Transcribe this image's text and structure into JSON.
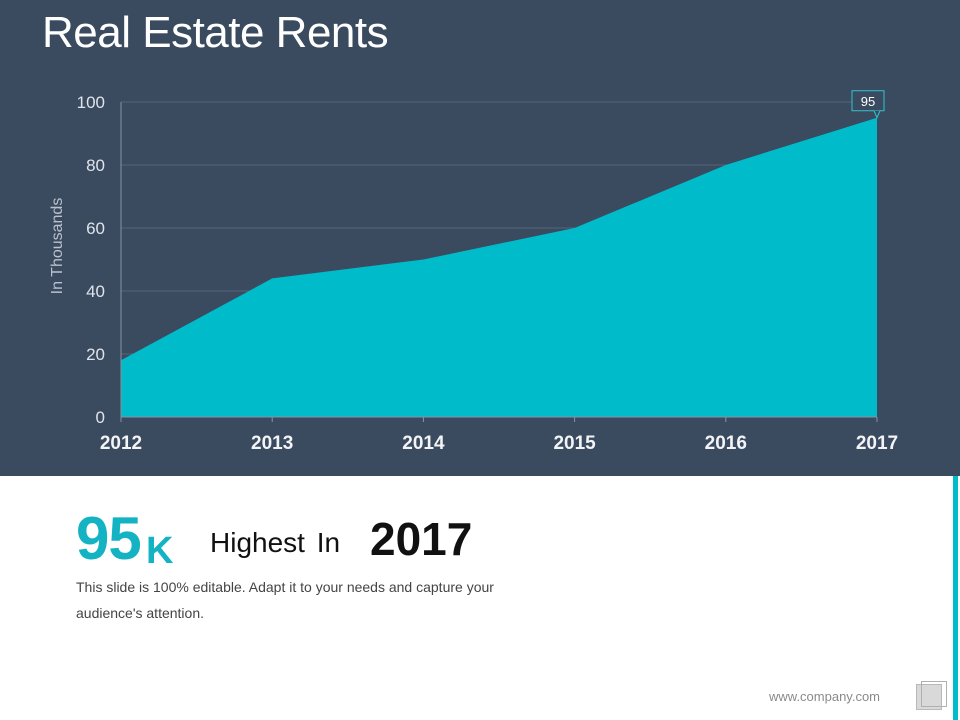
{
  "slide": {
    "title": "Real Estate Rents",
    "stat_value": "95",
    "stat_unit": "K",
    "stat_text": "Highest In",
    "stat_year": "2017",
    "description": "This slide is 100% editable. Adapt it to your needs and capture your audience's attention.",
    "footer_url": "www.company.com"
  },
  "colors": {
    "panel_background": "#3a4a5f",
    "accent": "#00bccb",
    "area_fill": "#00bccb"
  },
  "chart_data": {
    "type": "area",
    "title": "",
    "xlabel": "",
    "ylabel": "In Thousands",
    "categories": [
      "2012",
      "2013",
      "2014",
      "2015",
      "2016",
      "2017"
    ],
    "series": [
      {
        "values": [
          18,
          44,
          50,
          60,
          80,
          95
        ]
      }
    ],
    "ylim": [
      0,
      100
    ],
    "yticks": [
      0,
      20,
      40,
      60,
      80,
      100
    ],
    "grid": "horizontal",
    "legend": "none",
    "annotations": [
      {
        "category": "2017",
        "value": 95,
        "label": "95"
      }
    ]
  }
}
